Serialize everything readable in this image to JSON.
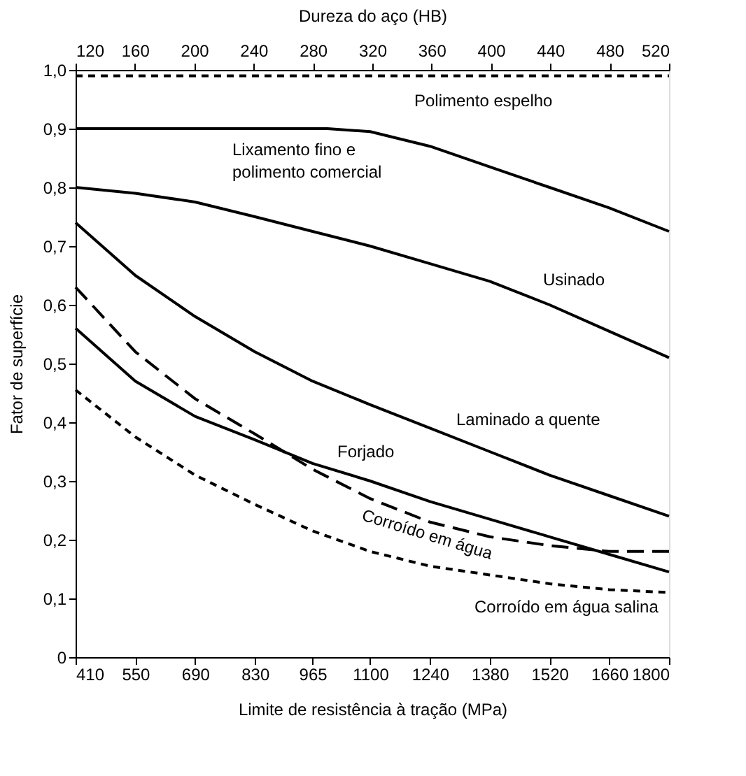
{
  "chart_data": {
    "type": "line",
    "xlabel": "Limite de resistência à tração (MPa)",
    "ylabel": "Fator de superfície",
    "x2label": "Dureza do aço (HB)",
    "xlim": [
      410,
      1800
    ],
    "xticks": [
      410,
      550,
      690,
      830,
      965,
      1100,
      1240,
      1380,
      1520,
      1660,
      1800
    ],
    "x2lim": [
      120,
      520
    ],
    "x2ticks": [
      120,
      160,
      200,
      240,
      280,
      320,
      360,
      400,
      440,
      480,
      520
    ],
    "ylim": [
      0,
      1.0
    ],
    "yticks": [
      0,
      {
        "value": 0.1,
        "label": "0,1"
      },
      {
        "value": 0.2,
        "label": "0,2"
      },
      {
        "value": 0.3,
        "label": "0,3"
      },
      {
        "value": 0.4,
        "label": "0,4"
      },
      {
        "value": 0.5,
        "label": "0,5"
      },
      {
        "value": 0.6,
        "label": "0,6"
      },
      {
        "value": 0.7,
        "label": "0,7"
      },
      {
        "value": 0.8,
        "label": "0,8"
      },
      {
        "value": 0.9,
        "label": "0,9"
      },
      {
        "value": 1.0,
        "label": "1,0"
      }
    ],
    "grid": false,
    "series": [
      {
        "name": "Polimento espelho",
        "color": "#000000",
        "line_style": "dotted",
        "x": [
          410,
          1800
        ],
        "values": [
          0.99,
          0.99
        ]
      },
      {
        "name": "Lixamento fino e polimento comercial",
        "color": "#000000",
        "line_style": "solid",
        "x": [
          410,
          1000,
          1100,
          1240,
          1380,
          1520,
          1660,
          1800
        ],
        "values": [
          0.9,
          0.9,
          0.895,
          0.87,
          0.835,
          0.8,
          0.765,
          0.725
        ]
      },
      {
        "name": "Usinado",
        "color": "#000000",
        "line_style": "solid",
        "x": [
          410,
          550,
          690,
          830,
          965,
          1100,
          1240,
          1380,
          1520,
          1660,
          1800
        ],
        "values": [
          0.8,
          0.79,
          0.775,
          0.75,
          0.725,
          0.7,
          0.67,
          0.64,
          0.6,
          0.555,
          0.51
        ]
      },
      {
        "name": "Laminado a quente",
        "color": "#000000",
        "line_style": "solid",
        "x": [
          410,
          550,
          690,
          830,
          965,
          1100,
          1240,
          1380,
          1520,
          1660,
          1800
        ],
        "values": [
          0.74,
          0.65,
          0.58,
          0.52,
          0.47,
          0.43,
          0.39,
          0.35,
          0.31,
          0.275,
          0.24
        ]
      },
      {
        "name": "Forjado",
        "color": "#000000",
        "line_style": "solid",
        "x": [
          410,
          550,
          690,
          830,
          965,
          1100,
          1240,
          1380,
          1520,
          1660,
          1800
        ],
        "values": [
          0.56,
          0.47,
          0.41,
          0.37,
          0.33,
          0.3,
          0.265,
          0.235,
          0.205,
          0.175,
          0.145
        ]
      },
      {
        "name": "Corroído em água",
        "color": "#000000",
        "line_style": "dashed",
        "x": [
          410,
          550,
          690,
          830,
          965,
          1100,
          1240,
          1380,
          1520,
          1660,
          1800
        ],
        "values": [
          0.63,
          0.52,
          0.44,
          0.38,
          0.32,
          0.27,
          0.23,
          0.205,
          0.19,
          0.18,
          0.18
        ]
      },
      {
        "name": "Corroído em água salina",
        "color": "#000000",
        "line_style": "dotted",
        "x": [
          410,
          550,
          690,
          830,
          965,
          1100,
          1240,
          1380,
          1520,
          1660,
          1800
        ],
        "values": [
          0.455,
          0.375,
          0.31,
          0.26,
          0.215,
          0.18,
          0.155,
          0.14,
          0.125,
          0.115,
          0.11
        ]
      }
    ]
  }
}
